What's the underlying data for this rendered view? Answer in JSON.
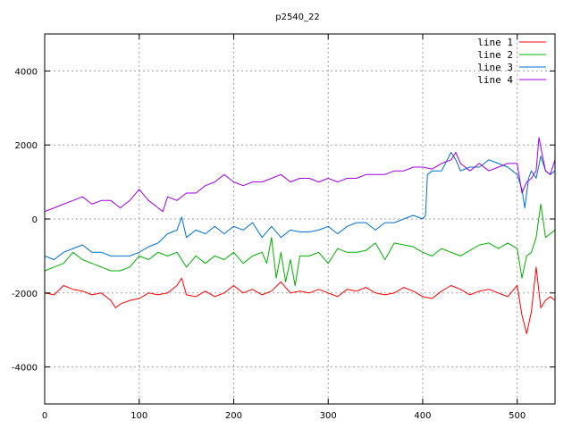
{
  "chart_data": {
    "type": "line",
    "title": "p2540_22",
    "xlabel": "",
    "ylabel": "",
    "xlim": [
      0,
      540
    ],
    "ylim": [
      -5000,
      5000
    ],
    "x_ticks": [
      0,
      100,
      200,
      300,
      400,
      500
    ],
    "y_ticks": [
      -4000,
      -2000,
      0,
      2000,
      4000
    ],
    "grid": true,
    "legend_position": "top-right",
    "series": [
      {
        "name": "line 1",
        "color": "#ff0000",
        "x": [
          0,
          10,
          20,
          30,
          40,
          50,
          60,
          70,
          75,
          80,
          90,
          100,
          110,
          120,
          130,
          140,
          145,
          150,
          160,
          170,
          180,
          190,
          200,
          210,
          220,
          230,
          240,
          250,
          260,
          270,
          280,
          290,
          300,
          310,
          320,
          330,
          340,
          350,
          360,
          370,
          380,
          390,
          400,
          410,
          420,
          430,
          440,
          450,
          460,
          470,
          480,
          490,
          500,
          505,
          510,
          515,
          520,
          525,
          530,
          535,
          540
        ],
        "y": [
          -2000,
          -2050,
          -1800,
          -1900,
          -1950,
          -2050,
          -2000,
          -2200,
          -2400,
          -2300,
          -2200,
          -2150,
          -2000,
          -2050,
          -2000,
          -1800,
          -1600,
          -2050,
          -2100,
          -1950,
          -2100,
          -2000,
          -1800,
          -2000,
          -1900,
          -2050,
          -1950,
          -1700,
          -2000,
          -1950,
          -2000,
          -1900,
          -2000,
          -2100,
          -1900,
          -1950,
          -1850,
          -2000,
          -2050,
          -2000,
          -1850,
          -1950,
          -2100,
          -2150,
          -1950,
          -1800,
          -1900,
          -2050,
          -1950,
          -1900,
          -2000,
          -2100,
          -1800,
          -2600,
          -3100,
          -2500,
          -1300,
          -2400,
          -2200,
          -2100,
          -2200
        ]
      },
      {
        "name": "line 2",
        "color": "#00b000",
        "x": [
          0,
          10,
          20,
          30,
          40,
          50,
          60,
          70,
          80,
          90,
          100,
          110,
          120,
          130,
          140,
          150,
          160,
          170,
          180,
          190,
          200,
          210,
          220,
          230,
          235,
          240,
          245,
          250,
          255,
          260,
          265,
          270,
          280,
          290,
          300,
          310,
          320,
          330,
          340,
          350,
          360,
          370,
          380,
          390,
          400,
          410,
          420,
          430,
          440,
          450,
          460,
          470,
          480,
          490,
          500,
          505,
          510,
          515,
          520,
          525,
          530,
          535,
          540
        ],
        "y": [
          -1400,
          -1300,
          -1200,
          -900,
          -1100,
          -1200,
          -1300,
          -1400,
          -1400,
          -1300,
          -1000,
          -1100,
          -900,
          -1000,
          -900,
          -1300,
          -1000,
          -1200,
          -1000,
          -1100,
          -900,
          -1200,
          -1000,
          -900,
          -1200,
          -500,
          -1600,
          -900,
          -1700,
          -1100,
          -1800,
          -1000,
          -1000,
          -900,
          -1200,
          -800,
          -900,
          -900,
          -850,
          -650,
          -1100,
          -650,
          -700,
          -750,
          -900,
          -1000,
          -800,
          -900,
          -1000,
          -850,
          -700,
          -650,
          -800,
          -650,
          -800,
          -1600,
          -1000,
          -900,
          -500,
          400,
          -500,
          -400,
          -300
        ]
      },
      {
        "name": "line 3",
        "color": "#0070d0",
        "x": [
          0,
          10,
          20,
          30,
          40,
          50,
          60,
          70,
          80,
          90,
          100,
          110,
          120,
          130,
          140,
          145,
          150,
          160,
          170,
          180,
          190,
          200,
          210,
          220,
          230,
          240,
          250,
          260,
          270,
          280,
          290,
          300,
          310,
          320,
          330,
          340,
          350,
          360,
          370,
          380,
          390,
          400,
          403,
          405,
          410,
          420,
          430,
          435,
          440,
          450,
          460,
          470,
          480,
          490,
          500,
          505,
          508,
          512,
          515,
          520,
          525,
          530,
          535,
          540
        ],
        "y": [
          -1000,
          -1100,
          -900,
          -800,
          -700,
          -900,
          -900,
          -1000,
          -1000,
          -1000,
          -900,
          -750,
          -650,
          -400,
          -300,
          50,
          -500,
          -300,
          -400,
          -200,
          -400,
          -200,
          -300,
          -100,
          -500,
          -200,
          -500,
          -300,
          -350,
          -350,
          -300,
          -200,
          -400,
          -200,
          -100,
          -100,
          -300,
          -100,
          -100,
          0,
          100,
          0,
          100,
          1200,
          1300,
          1300,
          1800,
          1600,
          1300,
          1400,
          1400,
          1600,
          1500,
          1400,
          1200,
          800,
          300,
          1100,
          1300,
          1100,
          1700,
          1300,
          1200,
          1300
        ]
      },
      {
        "name": "line 4",
        "color": "#a000e0",
        "x": [
          0,
          10,
          20,
          30,
          40,
          50,
          60,
          70,
          80,
          90,
          100,
          110,
          120,
          125,
          130,
          140,
          150,
          160,
          170,
          180,
          190,
          200,
          210,
          220,
          230,
          240,
          250,
          260,
          270,
          280,
          290,
          300,
          310,
          320,
          330,
          340,
          350,
          360,
          370,
          380,
          390,
          400,
          410,
          420,
          430,
          435,
          440,
          450,
          460,
          470,
          480,
          490,
          500,
          505,
          510,
          515,
          520,
          523,
          526,
          530,
          535,
          540
        ],
        "y": [
          200,
          300,
          400,
          500,
          600,
          400,
          500,
          500,
          300,
          500,
          800,
          500,
          300,
          200,
          600,
          500,
          700,
          700,
          900,
          1000,
          1200,
          1000,
          900,
          1000,
          1000,
          1100,
          1200,
          1000,
          1100,
          1100,
          1000,
          1100,
          1000,
          1100,
          1100,
          1200,
          1200,
          1200,
          1300,
          1300,
          1400,
          1400,
          1350,
          1500,
          1600,
          1800,
          1500,
          1300,
          1500,
          1300,
          1400,
          1500,
          1500,
          700,
          1000,
          1100,
          1300,
          2200,
          1800,
          1300,
          1200,
          1600
        ]
      }
    ]
  }
}
